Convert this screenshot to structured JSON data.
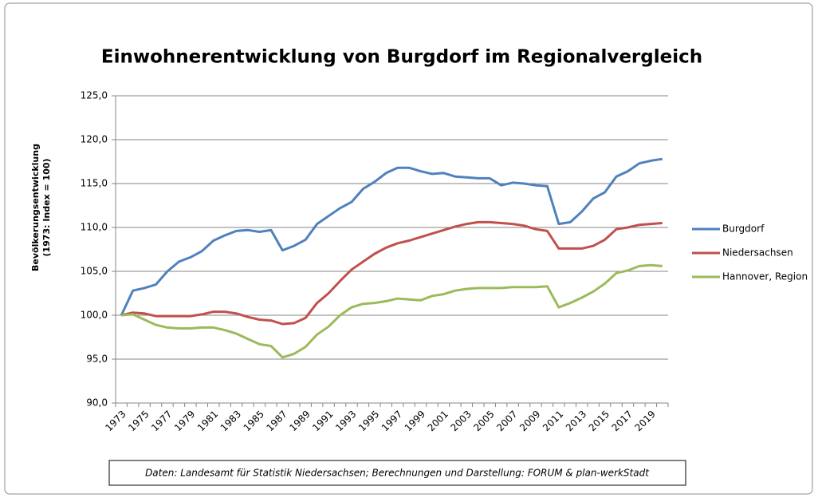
{
  "chart_data": {
    "type": "line",
    "title": "Einwohnerentwicklung von Burgdorf im Regionalvergleich",
    "ylabel": [
      "Bevölkerungsentwicklung",
      "(1973: Index = 100)"
    ],
    "source": "Daten: Landesamt für Statistik Niedersachsen; Berechnungen und Darstellung: FORUM & plan-werkStadt",
    "categories": [
      1973,
      null,
      1975,
      null,
      1977,
      null,
      1979,
      null,
      1981,
      null,
      1983,
      null,
      1985,
      null,
      1987,
      null,
      1989,
      null,
      1991,
      null,
      1993,
      null,
      1995,
      null,
      1997,
      null,
      1999,
      null,
      2001,
      null,
      2003,
      null,
      2005,
      null,
      2007,
      null,
      2009,
      null,
      2011,
      null,
      2013,
      null,
      2015,
      null,
      2017,
      null,
      2019,
      null
    ],
    "ylim": [
      90,
      125
    ],
    "yticks": [
      {
        "value": 90,
        "label": "90,0"
      },
      {
        "value": 95,
        "label": "95,0"
      },
      {
        "value": 100,
        "label": "100,0"
      },
      {
        "value": 105,
        "label": "105,0"
      },
      {
        "value": 110,
        "label": "110,0"
      },
      {
        "value": 115,
        "label": "115,0"
      },
      {
        "value": 120,
        "label": "120,0"
      },
      {
        "value": 125,
        "label": "125,0"
      }
    ],
    "grid": true,
    "legend": "right",
    "series": [
      {
        "name": "Burgdorf",
        "color": "#4f81bd",
        "values": [
          100,
          102.8,
          103.1,
          103.5,
          105,
          106.1,
          106.6,
          107.3,
          108.5,
          109.1,
          109.6,
          109.7,
          109.5,
          109.7,
          107.4,
          107.9,
          108.6,
          110.4,
          111.3,
          112.2,
          112.9,
          114.4,
          115.2,
          116.2,
          116.8,
          116.8,
          116.4,
          116.1,
          116.2,
          115.8,
          115.7,
          115.6,
          115.6,
          114.8,
          115.1,
          115,
          114.8,
          114.7,
          110.4,
          110.6,
          111.8,
          113.3,
          114,
          115.8,
          116.4,
          117.3,
          117.6,
          117.8
        ]
      },
      {
        "name": "Niedersachsen",
        "color": "#c0504d",
        "values": [
          100,
          100.3,
          100.2,
          99.9,
          99.9,
          99.9,
          99.9,
          100.1,
          100.4,
          100.4,
          100.2,
          99.8,
          99.5,
          99.4,
          99.0,
          99.1,
          99.7,
          101.4,
          102.5,
          103.9,
          105.2,
          106.1,
          107.0,
          107.7,
          108.2,
          108.5,
          108.9,
          109.3,
          109.7,
          110.1,
          110.4,
          110.6,
          110.6,
          110.5,
          110.4,
          110.2,
          109.8,
          109.6,
          107.6,
          107.6,
          107.6,
          107.9,
          108.6,
          109.8,
          110.0,
          110.3,
          110.4,
          110.5
        ]
      },
      {
        "name": "Hannover, Region",
        "color": "#9bbb59",
        "values": [
          100,
          100.1,
          99.5,
          98.9,
          98.6,
          98.5,
          98.5,
          98.6,
          98.6,
          98.3,
          97.9,
          97.3,
          96.7,
          96.5,
          95.2,
          95.6,
          96.4,
          97.8,
          98.7,
          100.0,
          100.9,
          101.3,
          101.4,
          101.6,
          101.9,
          101.8,
          101.7,
          102.2,
          102.4,
          102.8,
          103.0,
          103.1,
          103.1,
          103.1,
          103.2,
          103.2,
          103.2,
          103.3,
          100.9,
          101.4,
          102.0,
          102.7,
          103.6,
          104.8,
          105.1,
          105.6,
          105.7,
          105.6
        ]
      }
    ]
  }
}
